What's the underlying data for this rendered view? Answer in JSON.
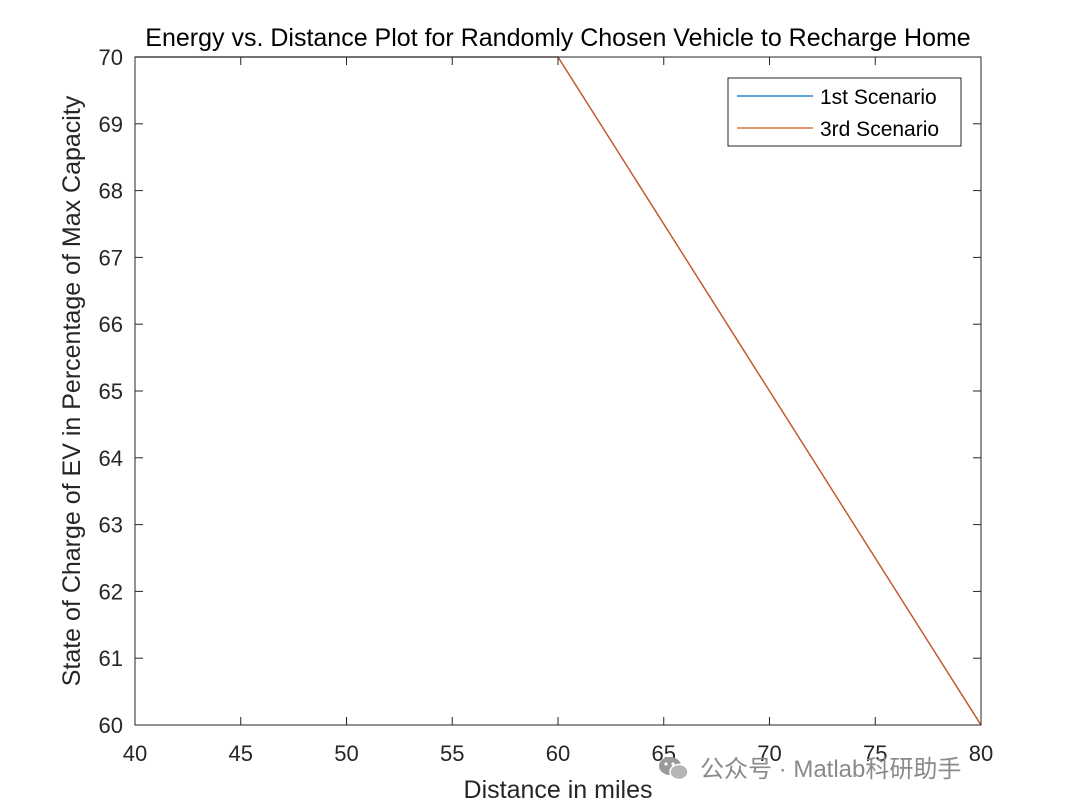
{
  "chart_data": {
    "type": "line",
    "title": "Energy vs. Distance Plot for Randomly Chosen Vehicle to Recharge Home",
    "xlabel": "Distance in miles",
    "ylabel": "State of Charge of EV in Percentage of Max Capacity",
    "xlim": [
      40,
      80
    ],
    "ylim": [
      60,
      70
    ],
    "xticks": [
      40,
      45,
      50,
      55,
      60,
      65,
      70,
      75,
      80
    ],
    "yticks": [
      60,
      61,
      62,
      63,
      64,
      65,
      66,
      67,
      68,
      69,
      70
    ],
    "grid": false,
    "legend_position": "top-right",
    "series": [
      {
        "name": "1st Scenario",
        "color": "#0072BD",
        "x": [
          40,
          60,
          80
        ],
        "y": [
          70,
          70,
          60
        ]
      },
      {
        "name": "3rd Scenario",
        "color": "#D95319",
        "x": [
          40,
          60,
          80
        ],
        "y": [
          70,
          70,
          60
        ]
      }
    ]
  },
  "watermark": {
    "text": "公众号 · Matlab科研助手",
    "icon": "wechat-icon"
  }
}
